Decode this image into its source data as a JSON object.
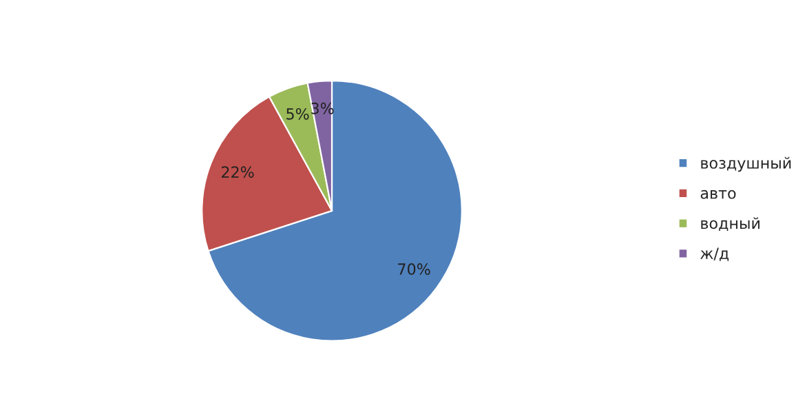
{
  "chart_data": {
    "type": "pie",
    "categories": [
      "воздушный",
      "авто",
      "водный",
      "ж/д"
    ],
    "values": [
      70,
      22,
      5,
      3
    ],
    "value_labels": [
      "70%",
      "22%",
      "5%",
      "3%"
    ],
    "colors": [
      "#4f81bd",
      "#c0504d",
      "#9bbb59",
      "#8064a2"
    ],
    "legend": "right"
  }
}
